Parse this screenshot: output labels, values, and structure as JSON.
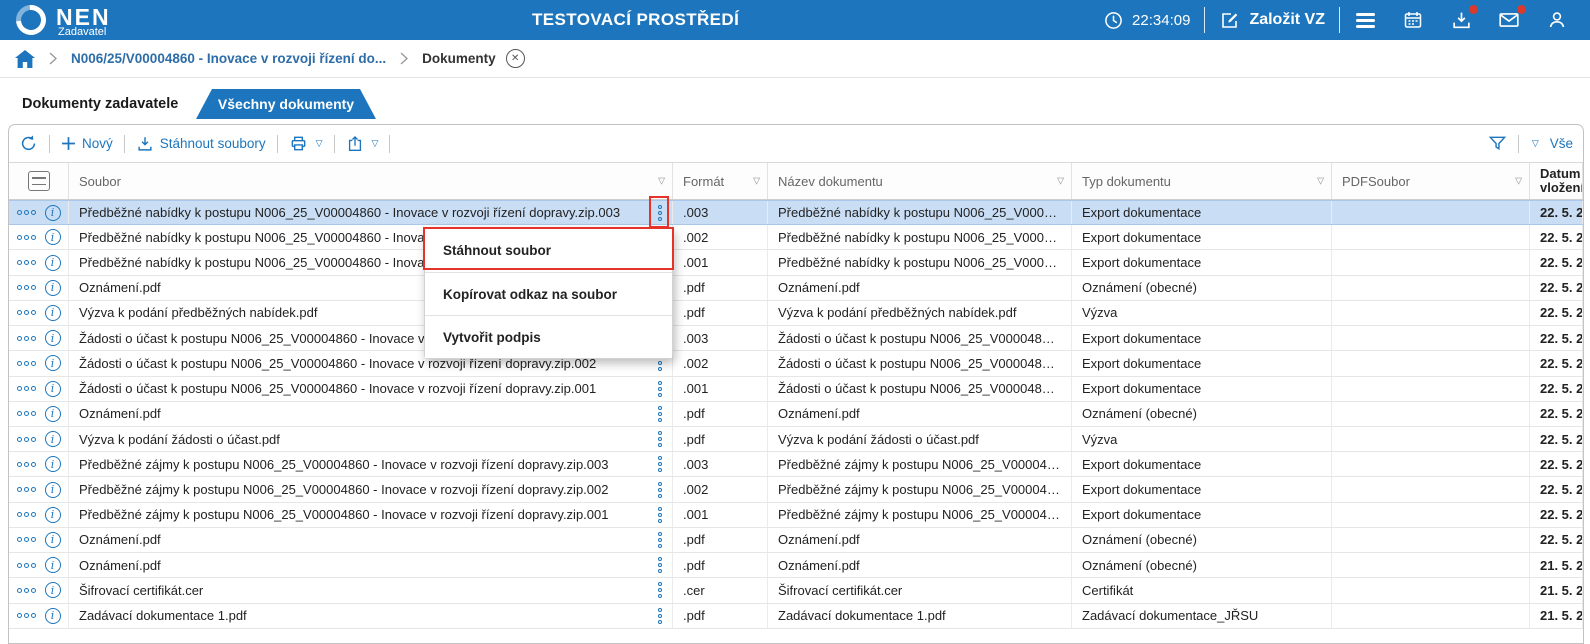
{
  "topbar": {
    "brand": "NEN",
    "brand_sub": "Zadavatel",
    "env_title": "TESTOVACÍ PROSTŘEDÍ",
    "time": "22:34:09",
    "create_vz": "Založit VZ"
  },
  "breadcrumb": {
    "procedure": "N006/25/V00004860 - Inovace v rozvoji řízení do...",
    "current": "Dokumenty"
  },
  "tabs": {
    "active": "Dokumenty zadavatele",
    "inactive": "Všechny dokumenty"
  },
  "toolbar": {
    "new": "Nový",
    "download_files": "Stáhnout soubory",
    "all_filter": "Vše"
  },
  "table": {
    "columns": [
      "Soubor",
      "Formát",
      "Název dokumentu",
      "Typ dokumentu",
      "PDFSoubor",
      "Datum vložení"
    ],
    "rows": [
      {
        "soubor": "Předběžné nabídky k postupu N006_25_V00004860 - Inovace v rozvoji řízení dopravy.zip.003",
        "format": ".003",
        "nazev": "Předběžné nabídky k postupu N006_25_V000…",
        "typ": "Export dokumentace",
        "pdf": "",
        "datum": "22. 5. 2",
        "selected": true
      },
      {
        "soubor": "Předběžné nabídky k postupu N006_25_V00004860 - Inovace v rozvoji řízení dopravy.zip.002",
        "format": ".002",
        "nazev": "Předběžné nabídky k postupu N006_25_V000…",
        "typ": "Export dokumentace",
        "pdf": "",
        "datum": "22. 5. 2",
        "selected": false
      },
      {
        "soubor": "Předběžné nabídky k postupu N006_25_V00004860 - Inovace v rozvoji řízení dopravy.zip.001",
        "format": ".001",
        "nazev": "Předběžné nabídky k postupu N006_25_V000…",
        "typ": "Export dokumentace",
        "pdf": "",
        "datum": "22. 5. 2",
        "selected": false
      },
      {
        "soubor": "Oznámení.pdf",
        "format": ".pdf",
        "nazev": "Oznámení.pdf",
        "typ": "Oznámení (obecné)",
        "pdf": "",
        "datum": "22. 5. 2",
        "selected": false
      },
      {
        "soubor": "Výzva k podání předběžných nabídek.pdf",
        "format": ".pdf",
        "nazev": "Výzva k podání předběžných nabídek.pdf",
        "typ": "Výzva",
        "pdf": "",
        "datum": "22. 5. 2",
        "selected": false
      },
      {
        "soubor": "Žádosti o účast k postupu N006_25_V00004860 - Inovace v rozvoji řízení dopravy.zip.003",
        "format": ".003",
        "nazev": "Žádosti o účast k postupu N006_25_V000048…",
        "typ": "Export dokumentace",
        "pdf": "",
        "datum": "22. 5. 2",
        "selected": false
      },
      {
        "soubor": "Žádosti o účast k postupu N006_25_V00004860 - Inovace v rozvoji řízení dopravy.zip.002",
        "format": ".002",
        "nazev": "Žádosti o účast k postupu N006_25_V000048…",
        "typ": "Export dokumentace",
        "pdf": "",
        "datum": "22. 5. 2",
        "selected": false
      },
      {
        "soubor": "Žádosti o účast k postupu N006_25_V00004860 - Inovace v rozvoji řízení dopravy.zip.001",
        "format": ".001",
        "nazev": "Žádosti o účast k postupu N006_25_V000048…",
        "typ": "Export dokumentace",
        "pdf": "",
        "datum": "22. 5. 2",
        "selected": false
      },
      {
        "soubor": "Oznámení.pdf",
        "format": ".pdf",
        "nazev": "Oznámení.pdf",
        "typ": "Oznámení (obecné)",
        "pdf": "",
        "datum": "22. 5. 2",
        "selected": false
      },
      {
        "soubor": "Výzva k podání žádosti o účast.pdf",
        "format": ".pdf",
        "nazev": "Výzva k podání žádosti o účast.pdf",
        "typ": "Výzva",
        "pdf": "",
        "datum": "22. 5. 2",
        "selected": false
      },
      {
        "soubor": "Předběžné zájmy k postupu N006_25_V00004860 - Inovace v rozvoji řízení dopravy.zip.003",
        "format": ".003",
        "nazev": "Předběžné zájmy k postupu N006_25_V00004…",
        "typ": "Export dokumentace",
        "pdf": "",
        "datum": "22. 5. 2",
        "selected": false
      },
      {
        "soubor": "Předběžné zájmy k postupu N006_25_V00004860 - Inovace v rozvoji řízení dopravy.zip.002",
        "format": ".002",
        "nazev": "Předběžné zájmy k postupu N006_25_V00004…",
        "typ": "Export dokumentace",
        "pdf": "",
        "datum": "22. 5. 2",
        "selected": false
      },
      {
        "soubor": "Předběžné zájmy k postupu N006_25_V00004860 - Inovace v rozvoji řízení dopravy.zip.001",
        "format": ".001",
        "nazev": "Předběžné zájmy k postupu N006_25_V00004…",
        "typ": "Export dokumentace",
        "pdf": "",
        "datum": "22. 5. 2",
        "selected": false
      },
      {
        "soubor": "Oznámení.pdf",
        "format": ".pdf",
        "nazev": "Oznámení.pdf",
        "typ": "Oznámení (obecné)",
        "pdf": "",
        "datum": "22. 5. 2",
        "selected": false
      },
      {
        "soubor": "Oznámení.pdf",
        "format": ".pdf",
        "nazev": "Oznámení.pdf",
        "typ": "Oznámení (obecné)",
        "pdf": "",
        "datum": "21. 5. 2",
        "selected": false
      },
      {
        "soubor": "Šifrovací certifikát.cer",
        "format": ".cer",
        "nazev": "Šifrovací certifikát.cer",
        "typ": "Certifikát",
        "pdf": "",
        "datum": "21. 5. 2",
        "selected": false
      },
      {
        "soubor": "Zadávací dokumentace 1.pdf",
        "format": ".pdf",
        "nazev": "Zadávací dokumentace 1.pdf",
        "typ": "Zadávací dokumentace_JŘSU",
        "pdf": "",
        "datum": "21. 5. 2",
        "selected": false
      }
    ]
  },
  "context_menu": {
    "items": [
      "Stáhnout soubor",
      "Kopírovat odkaz na soubor",
      "Vytvořit podpis"
    ],
    "highlighted": "Stáhnout soubor"
  },
  "colors": {
    "brand_blue": "#1d76bd",
    "selected_row": "#c9ddf4",
    "annotation_red": "#e5332a",
    "notification_red": "#d93a2b"
  }
}
